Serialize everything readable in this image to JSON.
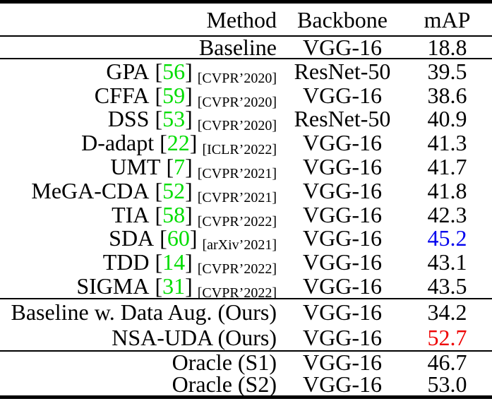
{
  "table": {
    "columns": [
      {
        "label": "Method"
      },
      {
        "label": "Backbone"
      },
      {
        "label": "mAP"
      }
    ],
    "punctuation": {
      "cite_open": "[",
      "cite_close": "]"
    },
    "colors": {
      "citation_green": "#00dd00",
      "blue": "#0000ee",
      "red": "#ee0000",
      "text": "#000000",
      "rule": "#000000"
    },
    "sections": [
      {
        "rows": [
          {
            "method": "Baseline",
            "backbone": "VGG-16",
            "map": "18.8"
          }
        ]
      },
      {
        "rows": [
          {
            "method": "GPA",
            "cite": "56",
            "venue": "[CVPR’2020]",
            "backbone": "ResNet-50",
            "map": "39.5"
          },
          {
            "method": "CFFA",
            "cite": "59",
            "venue": "[CVPR’2020]",
            "backbone": "VGG-16",
            "map": "38.6"
          },
          {
            "method": "DSS",
            "cite": "53",
            "venue": "[CVPR’2020]",
            "backbone": "ResNet-50",
            "map": "40.9"
          },
          {
            "method": "D-adapt",
            "cite": "22",
            "venue": "[ICLR’2022]",
            "backbone": "VGG-16",
            "map": "41.3"
          },
          {
            "method": "UMT",
            "cite": "7",
            "venue": "[CVPR’2021]",
            "backbone": "VGG-16",
            "map": "41.7"
          },
          {
            "method": "MeGA-CDA",
            "cite": "52",
            "venue": "[CVPR’2021]",
            "backbone": "VGG-16",
            "map": "41.8"
          },
          {
            "method": "TIA",
            "cite": "58",
            "venue": "[CVPR’2022]",
            "backbone": "VGG-16",
            "map": "42.3"
          },
          {
            "method": "SDA",
            "cite": "60",
            "venue": "[arXiv’2021]",
            "backbone": "VGG-16",
            "map": "45.2",
            "map_color": "blue"
          },
          {
            "method": "TDD",
            "cite": "14",
            "venue": "[CVPR’2022]",
            "backbone": "VGG-16",
            "map": "43.1"
          },
          {
            "method": "SIGMA",
            "cite": "31",
            "venue": "[CVPR’2022]",
            "backbone": "VGG-16",
            "map": "43.5"
          }
        ]
      },
      {
        "rows": [
          {
            "method": "Baseline w. Data Aug. (Ours)",
            "backbone": "VGG-16",
            "map": "34.2"
          },
          {
            "method": "NSA-UDA (Ours)",
            "backbone": "VGG-16",
            "map": "52.7",
            "map_color": "red"
          }
        ]
      },
      {
        "rows": [
          {
            "method": "Oracle (S1)",
            "backbone": "VGG-16",
            "map": "46.7"
          },
          {
            "method": "Oracle (S2)",
            "backbone": "VGG-16",
            "map": "53.0"
          }
        ]
      }
    ]
  }
}
